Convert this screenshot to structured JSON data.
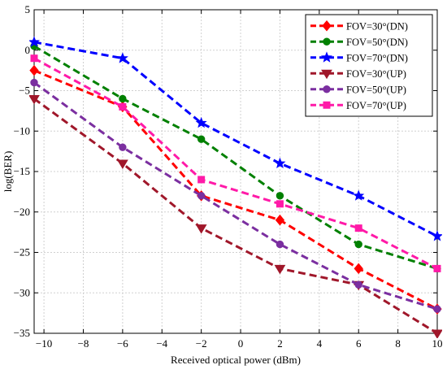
{
  "chart_data": {
    "type": "line",
    "title": "",
    "xlabel": "Received optical power (dBm)",
    "ylabel": "log(BER)",
    "xlim": [
      -10.5,
      10
    ],
    "ylim": [
      -35,
      5
    ],
    "xticks": [
      -10,
      -8,
      -6,
      -4,
      -2,
      0,
      2,
      4,
      6,
      8,
      10
    ],
    "yticks": [
      5,
      0,
      -5,
      -10,
      -15,
      -20,
      -25,
      -30,
      -35
    ],
    "grid": true,
    "legend_position": "top-right",
    "series": [
      {
        "name": "FOV=30°(DN)",
        "color": "#ff0000",
        "marker": "diamond",
        "x": [
          -10.5,
          -6,
          -2,
          2,
          6,
          10
        ],
        "y": [
          -2.5,
          -7,
          -18,
          -21,
          -27,
          -32
        ]
      },
      {
        "name": "FOV=50°(DN)",
        "color": "#008000",
        "marker": "circle",
        "x": [
          -10.5,
          -6,
          -2,
          2,
          6,
          10
        ],
        "y": [
          0.5,
          -6,
          -11,
          -18,
          -24,
          -27
        ]
      },
      {
        "name": "FOV=70°(DN)",
        "color": "#0000ff",
        "marker": "star",
        "x": [
          -10.5,
          -6,
          -2,
          2,
          6,
          10
        ],
        "y": [
          1,
          -1,
          -9,
          -14,
          -18,
          -23
        ]
      },
      {
        "name": "FOV=30°(UP)",
        "color": "#a0172a",
        "marker": "triangle-down",
        "x": [
          -10.5,
          -6,
          -2,
          2,
          6,
          10
        ],
        "y": [
          -6,
          -14,
          -22,
          -27,
          -29,
          -35
        ]
      },
      {
        "name": "FOV=50°(UP)",
        "color": "#7b2fa0",
        "marker": "circle",
        "x": [
          -10.5,
          -6,
          -2,
          2,
          6,
          10
        ],
        "y": [
          -4,
          -12,
          -18,
          -24,
          -29,
          -32
        ]
      },
      {
        "name": "FOV=70°(UP)",
        "color": "#ff1aa8",
        "marker": "square",
        "x": [
          -10.5,
          -6,
          -2,
          2,
          6,
          10
        ],
        "y": [
          -1,
          -7,
          -16,
          -19,
          -22,
          -27
        ]
      }
    ]
  }
}
